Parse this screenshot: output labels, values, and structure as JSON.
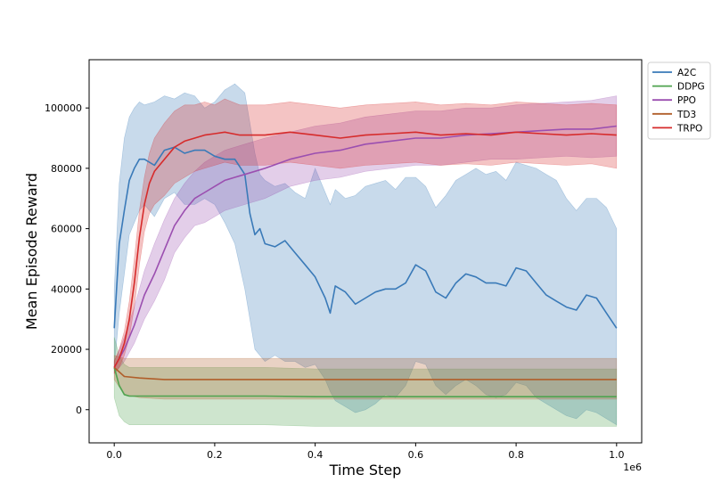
{
  "chart_data": {
    "type": "line",
    "title": "",
    "xlabel": "Time Step",
    "ylabel": "Mean Episode Reward",
    "x_offset_label": "1e6",
    "xlim": [
      -0.05,
      1.05
    ],
    "ylim": [
      -11000,
      116000
    ],
    "x_ticks": [
      0.0,
      0.2,
      0.4,
      0.6,
      0.8,
      1.0
    ],
    "x_tick_labels": [
      "0.0",
      "0.2",
      "0.4",
      "0.6",
      "0.8",
      "1.0"
    ],
    "y_ticks": [
      0,
      20000,
      40000,
      60000,
      80000,
      100000
    ],
    "y_tick_labels": [
      "0",
      "20000",
      "40000",
      "60000",
      "80000",
      "100000"
    ],
    "grid": false,
    "legend": "outside-top-right",
    "series": [
      {
        "name": "A2C",
        "color": "#3a7ab8",
        "x": [
          0.0,
          0.01,
          0.02,
          0.03,
          0.04,
          0.05,
          0.06,
          0.08,
          0.1,
          0.12,
          0.14,
          0.16,
          0.18,
          0.2,
          0.22,
          0.24,
          0.26,
          0.27,
          0.28,
          0.29,
          0.3,
          0.32,
          0.34,
          0.36,
          0.38,
          0.4,
          0.42,
          0.43,
          0.44,
          0.46,
          0.48,
          0.5,
          0.52,
          0.54,
          0.56,
          0.58,
          0.6,
          0.62,
          0.64,
          0.66,
          0.68,
          0.7,
          0.72,
          0.74,
          0.76,
          0.78,
          0.8,
          0.82,
          0.84,
          0.86,
          0.88,
          0.9,
          0.92,
          0.94,
          0.96,
          0.98,
          1.0
        ],
        "y": [
          27000,
          55000,
          66000,
          76000,
          80000,
          83000,
          83000,
          81000,
          86000,
          87000,
          85000,
          86000,
          86000,
          84000,
          83000,
          83000,
          78000,
          65000,
          58000,
          60000,
          55000,
          54000,
          56000,
          52000,
          48000,
          44000,
          37000,
          32000,
          41000,
          39000,
          35000,
          37000,
          39000,
          40000,
          40000,
          42000,
          48000,
          46000,
          39000,
          37000,
          42000,
          45000,
          44000,
          42000,
          42000,
          41000,
          47000,
          46000,
          42000,
          38000,
          36000,
          34000,
          33000,
          38000,
          37000,
          32000,
          27000
        ],
        "upper": [
          40000,
          75000,
          90000,
          97000,
          100000,
          102000,
          101000,
          102000,
          104000,
          103000,
          105000,
          104000,
          100000,
          102000,
          106000,
          108000,
          105000,
          95000,
          85000,
          78000,
          76000,
          74000,
          75000,
          72000,
          70000,
          80000,
          72000,
          68000,
          73000,
          70000,
          71000,
          74000,
          75000,
          76000,
          73000,
          77000,
          77000,
          74000,
          67000,
          71000,
          76000,
          78000,
          80000,
          78000,
          79000,
          76000,
          82000,
          81000,
          80000,
          78000,
          76000,
          70000,
          66000,
          70000,
          70000,
          67000,
          60000
        ],
        "lower": [
          14000,
          32000,
          45000,
          58000,
          62000,
          66000,
          68000,
          64000,
          70000,
          72000,
          68000,
          68000,
          70000,
          68000,
          62000,
          55000,
          40000,
          30000,
          20000,
          18000,
          16000,
          18000,
          16000,
          16000,
          14000,
          15000,
          10000,
          6000,
          3000,
          1000,
          -1000,
          0,
          2000,
          5000,
          4000,
          8000,
          16000,
          15000,
          8000,
          5000,
          8000,
          10000,
          8000,
          5000,
          4000,
          5000,
          9000,
          8000,
          4000,
          2000,
          0,
          -2000,
          -3000,
          0,
          -1000,
          -3000,
          -5000
        ]
      },
      {
        "name": "DDPG",
        "color": "#4fa34f",
        "x": [
          0.0,
          0.01,
          0.02,
          0.03,
          0.05,
          0.1,
          0.2,
          0.3,
          0.4,
          0.5,
          0.6,
          0.7,
          0.8,
          0.9,
          1.0
        ],
        "y": [
          14000,
          8000,
          5000,
          4500,
          4500,
          4500,
          4500,
          4500,
          4300,
          4300,
          4300,
          4300,
          4300,
          4300,
          4300
        ],
        "upper": [
          24000,
          18000,
          15000,
          14000,
          14000,
          14000,
          14000,
          14000,
          13500,
          13500,
          13500,
          13500,
          13500,
          13500,
          13500
        ],
        "lower": [
          4000,
          -2000,
          -4000,
          -5000,
          -5000,
          -5000,
          -5000,
          -5000,
          -5500,
          -5500,
          -5500,
          -5500,
          -5500,
          -5500,
          -5500
        ]
      },
      {
        "name": "PPO",
        "color": "#9b4fb0",
        "x": [
          0.0,
          0.02,
          0.04,
          0.06,
          0.08,
          0.1,
          0.12,
          0.14,
          0.16,
          0.18,
          0.2,
          0.22,
          0.24,
          0.26,
          0.28,
          0.3,
          0.35,
          0.4,
          0.45,
          0.5,
          0.55,
          0.6,
          0.65,
          0.7,
          0.75,
          0.8,
          0.85,
          0.9,
          0.95,
          1.0
        ],
        "y": [
          14000,
          20000,
          28000,
          38000,
          45000,
          53000,
          61000,
          66000,
          70000,
          72000,
          74000,
          76000,
          77000,
          78000,
          79000,
          80000,
          83000,
          85000,
          86000,
          88000,
          89000,
          90000,
          90000,
          91000,
          91500,
          92000,
          92500,
          93000,
          93000,
          94000
        ],
        "upper": [
          16000,
          24000,
          34000,
          46000,
          55000,
          63000,
          70000,
          75000,
          79000,
          82000,
          84000,
          86000,
          87000,
          88000,
          89000,
          90000,
          92000,
          94000,
          95000,
          97000,
          98000,
          99000,
          99000,
          100000,
          100000,
          101000,
          101500,
          102000,
          102500,
          104000
        ],
        "lower": [
          12000,
          16000,
          22000,
          30000,
          36000,
          43000,
          52000,
          57000,
          61000,
          62000,
          64000,
          66000,
          67000,
          68000,
          69000,
          70000,
          74000,
          76000,
          77000,
          79000,
          80000,
          81000,
          81000,
          82000,
          83000,
          83000,
          83500,
          84000,
          83500,
          84000
        ]
      },
      {
        "name": "TD3",
        "color": "#b05e2a",
        "x": [
          0.0,
          0.02,
          0.05,
          0.1,
          0.2,
          0.3,
          0.4,
          0.5,
          0.6,
          0.7,
          0.8,
          0.9,
          1.0
        ],
        "y": [
          14000,
          11000,
          10500,
          10000,
          10000,
          10000,
          10000,
          10000,
          10000,
          10000,
          10000,
          10000,
          10000
        ],
        "upper": [
          18000,
          17000,
          17000,
          17000,
          17000,
          17000,
          17000,
          17000,
          17000,
          17000,
          17000,
          17000,
          17000
        ],
        "lower": [
          10000,
          5000,
          4000,
          3500,
          3500,
          3500,
          3500,
          3500,
          3500,
          3500,
          3500,
          3500,
          3500
        ]
      },
      {
        "name": "TRPO",
        "color": "#d62b2b",
        "x": [
          0.0,
          0.01,
          0.02,
          0.03,
          0.04,
          0.05,
          0.06,
          0.07,
          0.08,
          0.1,
          0.12,
          0.14,
          0.16,
          0.18,
          0.2,
          0.22,
          0.25,
          0.3,
          0.35,
          0.4,
          0.45,
          0.5,
          0.55,
          0.6,
          0.65,
          0.7,
          0.75,
          0.8,
          0.85,
          0.9,
          0.95,
          1.0
        ],
        "y": [
          14000,
          17000,
          22000,
          30000,
          42000,
          57000,
          68000,
          75000,
          79000,
          83000,
          87000,
          89000,
          90000,
          91000,
          91500,
          92000,
          91000,
          91000,
          92000,
          91000,
          90000,
          91000,
          91500,
          92000,
          91000,
          91500,
          91000,
          92000,
          91500,
          91000,
          91500,
          91000
        ],
        "upper": [
          16000,
          20000,
          26000,
          36000,
          50000,
          66000,
          77000,
          85000,
          90000,
          95000,
          99000,
          101000,
          101000,
          102000,
          101000,
          103000,
          101000,
          101000,
          102000,
          101000,
          100000,
          101000,
          101500,
          102000,
          101000,
          101500,
          101000,
          102000,
          101500,
          101000,
          101500,
          101000
        ],
        "lower": [
          12000,
          14000,
          18000,
          24000,
          34000,
          48000,
          59000,
          65000,
          68000,
          71000,
          75000,
          77000,
          79000,
          80000,
          81000,
          82000,
          81000,
          81000,
          82000,
          81000,
          80000,
          81000,
          81500,
          82000,
          81000,
          81500,
          81000,
          82000,
          81500,
          81000,
          81500,
          80000
        ]
      }
    ]
  }
}
